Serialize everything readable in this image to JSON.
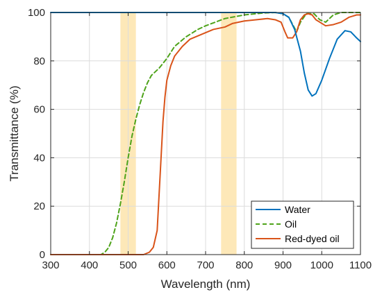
{
  "chart_data": {
    "type": "line",
    "xlabel": "Wavelength (nm)",
    "ylabel": "Transmittance (%)",
    "xlim": [
      300,
      1100
    ],
    "ylim": [
      0,
      100
    ],
    "x_ticks": [
      300,
      400,
      500,
      600,
      700,
      800,
      900,
      1000,
      1100
    ],
    "y_ticks": [
      0,
      20,
      40,
      60,
      80,
      100
    ],
    "grid": true,
    "legend_position": "bottom-right",
    "highlight_bands": [
      {
        "x_range": [
          480,
          520
        ],
        "color": "#fde8b8"
      },
      {
        "x_range": [
          740,
          780
        ],
        "color": "#fde8b8"
      }
    ],
    "series": [
      {
        "name": "Water",
        "color": "#0072bd",
        "dash": "solid",
        "points": [
          [
            300,
            100
          ],
          [
            880,
            100
          ],
          [
            900,
            99.5
          ],
          [
            915,
            98
          ],
          [
            930,
            93
          ],
          [
            945,
            84
          ],
          [
            955,
            75
          ],
          [
            965,
            68
          ],
          [
            975,
            65.5
          ],
          [
            985,
            66.5
          ],
          [
            1000,
            72
          ],
          [
            1020,
            81
          ],
          [
            1040,
            89
          ],
          [
            1060,
            92.5
          ],
          [
            1075,
            92
          ],
          [
            1090,
            89.5
          ],
          [
            1100,
            88
          ]
        ]
      },
      {
        "name": "Oil",
        "color": "#4ea31a",
        "dash": "6,4",
        "points": [
          [
            300,
            0
          ],
          [
            430,
            0
          ],
          [
            440,
            1
          ],
          [
            450,
            3
          ],
          [
            460,
            7
          ],
          [
            470,
            13
          ],
          [
            480,
            21
          ],
          [
            490,
            30
          ],
          [
            500,
            40
          ],
          [
            510,
            49
          ],
          [
            520,
            56
          ],
          [
            530,
            62
          ],
          [
            540,
            67
          ],
          [
            550,
            71
          ],
          [
            560,
            74
          ],
          [
            580,
            77
          ],
          [
            600,
            81
          ],
          [
            620,
            86
          ],
          [
            650,
            90
          ],
          [
            680,
            93
          ],
          [
            700,
            94.5
          ],
          [
            750,
            97.5
          ],
          [
            800,
            99
          ],
          [
            850,
            99.8
          ],
          [
            880,
            100
          ],
          [
            900,
            99.5
          ],
          [
            915,
            98
          ],
          [
            925,
            95
          ],
          [
            935,
            92
          ],
          [
            945,
            96
          ],
          [
            960,
            99.5
          ],
          [
            980,
            99.5
          ],
          [
            995,
            97
          ],
          [
            1010,
            96
          ],
          [
            1030,
            99
          ],
          [
            1050,
            100
          ],
          [
            1100,
            100
          ]
        ]
      },
      {
        "name": "Red-dyed oil",
        "color": "#d95319",
        "dash": "solid",
        "points": [
          [
            300,
            0
          ],
          [
            540,
            0
          ],
          [
            555,
            1
          ],
          [
            565,
            3
          ],
          [
            575,
            10
          ],
          [
            580,
            25
          ],
          [
            585,
            40
          ],
          [
            590,
            55
          ],
          [
            595,
            65
          ],
          [
            600,
            72
          ],
          [
            610,
            78
          ],
          [
            620,
            82
          ],
          [
            640,
            86
          ],
          [
            660,
            89
          ],
          [
            690,
            91
          ],
          [
            720,
            93
          ],
          [
            750,
            94
          ],
          [
            770,
            95.5
          ],
          [
            800,
            96.5
          ],
          [
            830,
            97
          ],
          [
            860,
            97.5
          ],
          [
            880,
            97
          ],
          [
            895,
            96
          ],
          [
            905,
            92
          ],
          [
            912,
            89.5
          ],
          [
            925,
            89.5
          ],
          [
            935,
            92
          ],
          [
            945,
            97
          ],
          [
            955,
            99
          ],
          [
            965,
            99.5
          ],
          [
            975,
            99
          ],
          [
            985,
            97
          ],
          [
            995,
            96
          ],
          [
            1010,
            94.5
          ],
          [
            1030,
            95
          ],
          [
            1050,
            96
          ],
          [
            1070,
            98
          ],
          [
            1090,
            99
          ],
          [
            1100,
            99
          ]
        ]
      }
    ]
  }
}
